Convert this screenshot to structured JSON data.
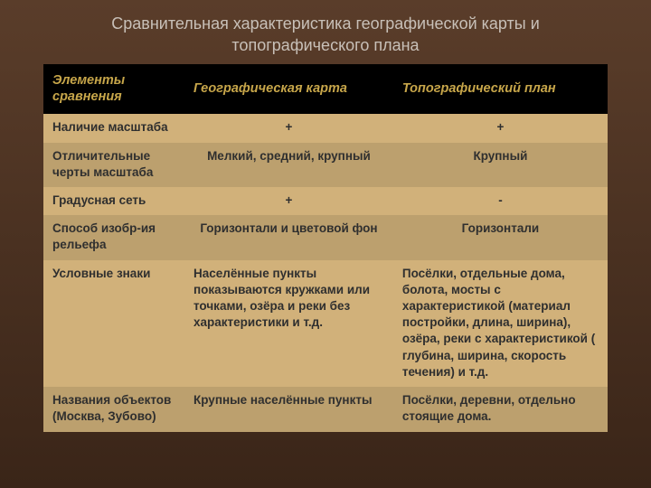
{
  "slide": {
    "title": "Сравнительная характеристика географической карты и топографического плана",
    "background_gradient_top": "#5a3d2a",
    "background_gradient_bottom": "#3a2518",
    "title_color": "#c8c0b8",
    "title_fontsize": 18
  },
  "table": {
    "type": "table",
    "header_bg": "#000000",
    "header_fg": "#c7a64a",
    "header_fontsize": 14.5,
    "header_italic": true,
    "row_even_bg": "#d1b17a",
    "row_odd_bg": "#bca06e",
    "cell_fg": "#2f2f2f",
    "cell_fontsize": 13.5,
    "cell_fontweight": "bold",
    "columns": [
      {
        "label": "Элементы сравнения",
        "width_pct": 25,
        "align": "left"
      },
      {
        "label": "Географическая карта",
        "width_pct": 37,
        "align": "center"
      },
      {
        "label": "Топографический план",
        "width_pct": 38,
        "align": "center"
      }
    ],
    "rows": [
      {
        "cells": [
          "Наличие масштаба",
          "+",
          "+"
        ],
        "align": [
          "left",
          "center",
          "center"
        ]
      },
      {
        "cells": [
          "Отличительные черты масштаба",
          "Мелкий, средний, крупный",
          "Крупный"
        ],
        "align": [
          "left",
          "center",
          "center"
        ]
      },
      {
        "cells": [
          "Градусная сеть",
          "+",
          "-"
        ],
        "align": [
          "left",
          "center",
          "center"
        ]
      },
      {
        "cells": [
          "Способ изобр-ия рельефа",
          "Горизонтали и цветовой фон",
          "Горизонтали"
        ],
        "align": [
          "left",
          "center",
          "center"
        ]
      },
      {
        "cells": [
          "Условные знаки",
          "Населённые пункты показываются кружками или точками, озёра и реки без характеристики и т.д.",
          "Посёлки, отдельные дома, болота, мосты с характеристикой (материал постройки, длина, ширина), озёра, реки с характеристикой ( глубина, ширина, скорость течения) и т.д."
        ],
        "align": [
          "left",
          "left",
          "left"
        ]
      },
      {
        "cells": [
          "Названия объектов (Москва, Зубово)",
          "Крупные населённые пункты",
          "Посёлки, деревни, отдельно стоящие дома."
        ],
        "align": [
          "left",
          "left",
          "left"
        ]
      }
    ]
  }
}
